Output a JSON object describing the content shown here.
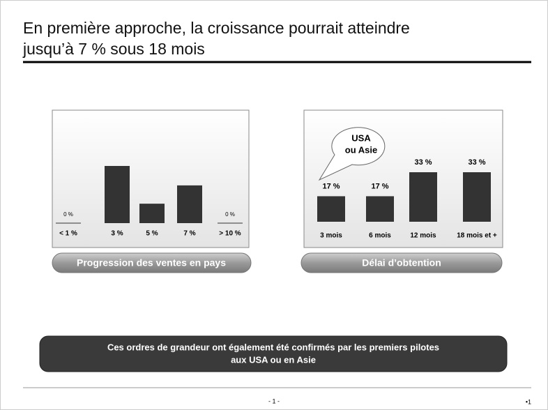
{
  "title_lines": [
    "En première approche, la croissance pourrait atteindre",
    "jusqu’à 7 % sous 18 mois"
  ],
  "chart_data": [
    {
      "type": "bar",
      "categories": [
        "< 1 %",
        "3 %",
        "5 %",
        "7 %",
        "> 10 %"
      ],
      "values": [
        0,
        50,
        17,
        33,
        0
      ],
      "value_labels": [
        "0 %",
        null,
        null,
        null,
        "0 %"
      ],
      "color": "#333333",
      "caption": "Progression des ventes en pays"
    },
    {
      "type": "bar",
      "categories": [
        "3 mois",
        "6 mois",
        "12 mois",
        "18 mois et +"
      ],
      "values": [
        17,
        17,
        33,
        33
      ],
      "value_labels": [
        "17 %",
        "17 %",
        "33 %",
        "33 %"
      ],
      "color": "#333333",
      "caption": "Délai d’obtention",
      "annotation_lines": [
        "USA",
        "ou Asie"
      ]
    }
  ],
  "conclusion_lines": [
    "Ces ordres de grandeur ont également été confirmés par les premiers pilotes",
    "aux USA ou en Asie"
  ],
  "footer": {
    "page": "- 1 -",
    "number": "•1"
  }
}
